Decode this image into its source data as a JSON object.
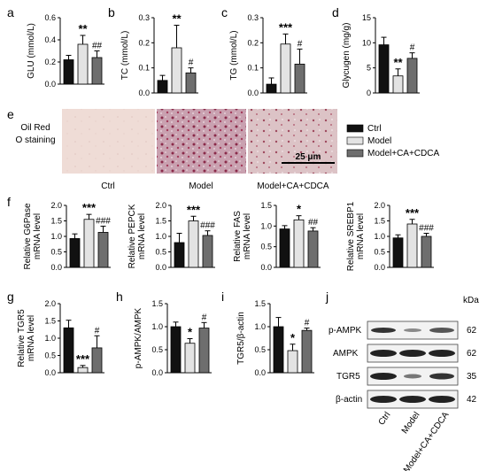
{
  "colors": {
    "ctrl": "#111111",
    "model": "#e3e3e3",
    "treat": "#6e6e6e",
    "axis": "#000000"
  },
  "legend": {
    "ctrl": "Ctrl",
    "model": "Model",
    "treat": "Model+CA+CDCA"
  },
  "staining": {
    "row_label_1": "Oil Red",
    "row_label_2": "O staining",
    "scale_bar": "25 μm",
    "captions": [
      "Ctrl",
      "Model",
      "Model+CA+CDCA"
    ]
  },
  "western": {
    "kda_label": "kDa",
    "bands": [
      {
        "name": "p-AMPK",
        "kda": "62"
      },
      {
        "name": "AMPK",
        "kda": "62"
      },
      {
        "name": "TGR5",
        "kda": "35"
      },
      {
        "name": "β-actin",
        "kda": "42"
      }
    ],
    "lanes": [
      "Ctrl",
      "Model",
      "Model+CA+CDCA"
    ]
  },
  "chart_data": [
    {
      "panel": "a",
      "type": "bar",
      "ylabel": "GLU (mmol/L)",
      "ylim": [
        0,
        0.6
      ],
      "yticks": [
        "0.0",
        "0.2",
        "0.4",
        "0.6"
      ],
      "categories": [
        "Ctrl",
        "Model",
        "Model+CA+CDCA"
      ],
      "values": [
        0.22,
        0.36,
        0.24
      ],
      "errors": [
        0.04,
        0.08,
        0.06
      ],
      "marks": [
        "",
        "**",
        "##"
      ]
    },
    {
      "panel": "b",
      "type": "bar",
      "ylabel": "TC (mmol/L)",
      "ylim": [
        0,
        0.3
      ],
      "yticks": [
        "0.0",
        "0.1",
        "0.2",
        "0.3"
      ],
      "categories": [
        "Ctrl",
        "Model",
        "Model+CA+CDCA"
      ],
      "values": [
        0.05,
        0.18,
        0.08
      ],
      "errors": [
        0.02,
        0.09,
        0.02
      ],
      "marks": [
        "",
        "**",
        "#"
      ]
    },
    {
      "panel": "c",
      "type": "bar",
      "ylabel": "TG (mmol/L)",
      "ylim": [
        0,
        0.3
      ],
      "yticks": [
        "0.0",
        "0.1",
        "0.2",
        "0.3"
      ],
      "categories": [
        "Ctrl",
        "Model",
        "Model+CA+CDCA"
      ],
      "values": [
        0.035,
        0.195,
        0.115
      ],
      "errors": [
        0.025,
        0.04,
        0.06
      ],
      "marks": [
        "",
        "***",
        "#"
      ]
    },
    {
      "panel": "d",
      "type": "bar",
      "ylabel": "Glycugen (mg/g)",
      "ylim": [
        0,
        15
      ],
      "yticks": [
        "0",
        "5",
        "10",
        "15"
      ],
      "categories": [
        "Ctrl",
        "Model",
        "Model+CA+CDCA"
      ],
      "values": [
        9.6,
        3.4,
        6.9
      ],
      "errors": [
        1.5,
        1.4,
        1.1
      ],
      "marks": [
        "",
        "**",
        "#"
      ]
    },
    {
      "panel": "f",
      "type": "bar",
      "ylabel": "Relative G6Pase|mRNA level",
      "ylim": [
        0,
        2.0
      ],
      "yticks": [
        "0.0",
        "0.5",
        "1.0",
        "1.5",
        "2.0"
      ],
      "categories": [
        "Ctrl",
        "Model",
        "Model+CA+CDCA"
      ],
      "values": [
        0.93,
        1.55,
        1.13
      ],
      "errors": [
        0.15,
        0.16,
        0.2
      ],
      "marks": [
        "",
        "***",
        "###"
      ]
    },
    {
      "panel": "f2",
      "type": "bar",
      "ylabel": "Relative PEPCK|mRNA level",
      "ylim": [
        0,
        2.0
      ],
      "yticks": [
        "0.0",
        "0.5",
        "1.0",
        "1.5",
        "2.0"
      ],
      "categories": [
        "Ctrl",
        "Model",
        "Model+CA+CDCA"
      ],
      "values": [
        0.8,
        1.5,
        1.03
      ],
      "errors": [
        0.3,
        0.15,
        0.15
      ],
      "marks": [
        "",
        "***",
        "###"
      ]
    },
    {
      "panel": "f3",
      "type": "bar",
      "ylabel": "Relative FAS|mRNA level",
      "ylim": [
        0,
        1.5
      ],
      "yticks": [
        "0.0",
        "0.5",
        "1.0",
        "1.5"
      ],
      "categories": [
        "Ctrl",
        "Model",
        "Model+CA+CDCA"
      ],
      "values": [
        0.93,
        1.15,
        0.88
      ],
      "errors": [
        0.08,
        0.1,
        0.08
      ],
      "marks": [
        "",
        "*",
        "##"
      ]
    },
    {
      "panel": "f4",
      "type": "bar",
      "ylabel": "Relative SREBP1|mRNA level",
      "ylim": [
        0,
        2.0
      ],
      "yticks": [
        "0.0",
        "0.5",
        "1.0",
        "1.5",
        "2.0"
      ],
      "categories": [
        "Ctrl",
        "Model",
        "Model+CA+CDCA"
      ],
      "values": [
        0.95,
        1.4,
        1.0
      ],
      "errors": [
        0.1,
        0.15,
        0.1
      ],
      "marks": [
        "",
        "***",
        "###"
      ]
    },
    {
      "panel": "g",
      "type": "bar",
      "ylabel": "Relative TGR5|mRNA level",
      "ylim": [
        0,
        2.0
      ],
      "yticks": [
        "0.0",
        "0.5",
        "1.0",
        "1.5",
        "2.0"
      ],
      "categories": [
        "Ctrl",
        "Model",
        "Model+CA+CDCA"
      ],
      "values": [
        1.3,
        0.15,
        0.72
      ],
      "errors": [
        0.22,
        0.06,
        0.35
      ],
      "marks": [
        "",
        "***",
        "#"
      ]
    },
    {
      "panel": "h",
      "type": "bar",
      "ylabel": "p-AMPK/AMPK",
      "ylim": [
        0,
        1.5
      ],
      "yticks": [
        "0.0",
        "0.5",
        "1.0",
        "1.5"
      ],
      "categories": [
        "Ctrl",
        "Model",
        "Model+CA+CDCA"
      ],
      "values": [
        1.0,
        0.64,
        0.97
      ],
      "errors": [
        0.1,
        0.1,
        0.12
      ],
      "marks": [
        "",
        "*",
        "#"
      ]
    },
    {
      "panel": "i",
      "type": "bar",
      "ylabel": "TGR5/β-actin",
      "ylim": [
        0,
        1.5
      ],
      "yticks": [
        "0.0",
        "0.5",
        "1.0",
        "1.5"
      ],
      "categories": [
        "Ctrl",
        "Model",
        "Model+CA+CDCA"
      ],
      "values": [
        1.0,
        0.48,
        0.92
      ],
      "errors": [
        0.2,
        0.14,
        0.05
      ],
      "marks": [
        "",
        "*",
        "#"
      ]
    }
  ]
}
